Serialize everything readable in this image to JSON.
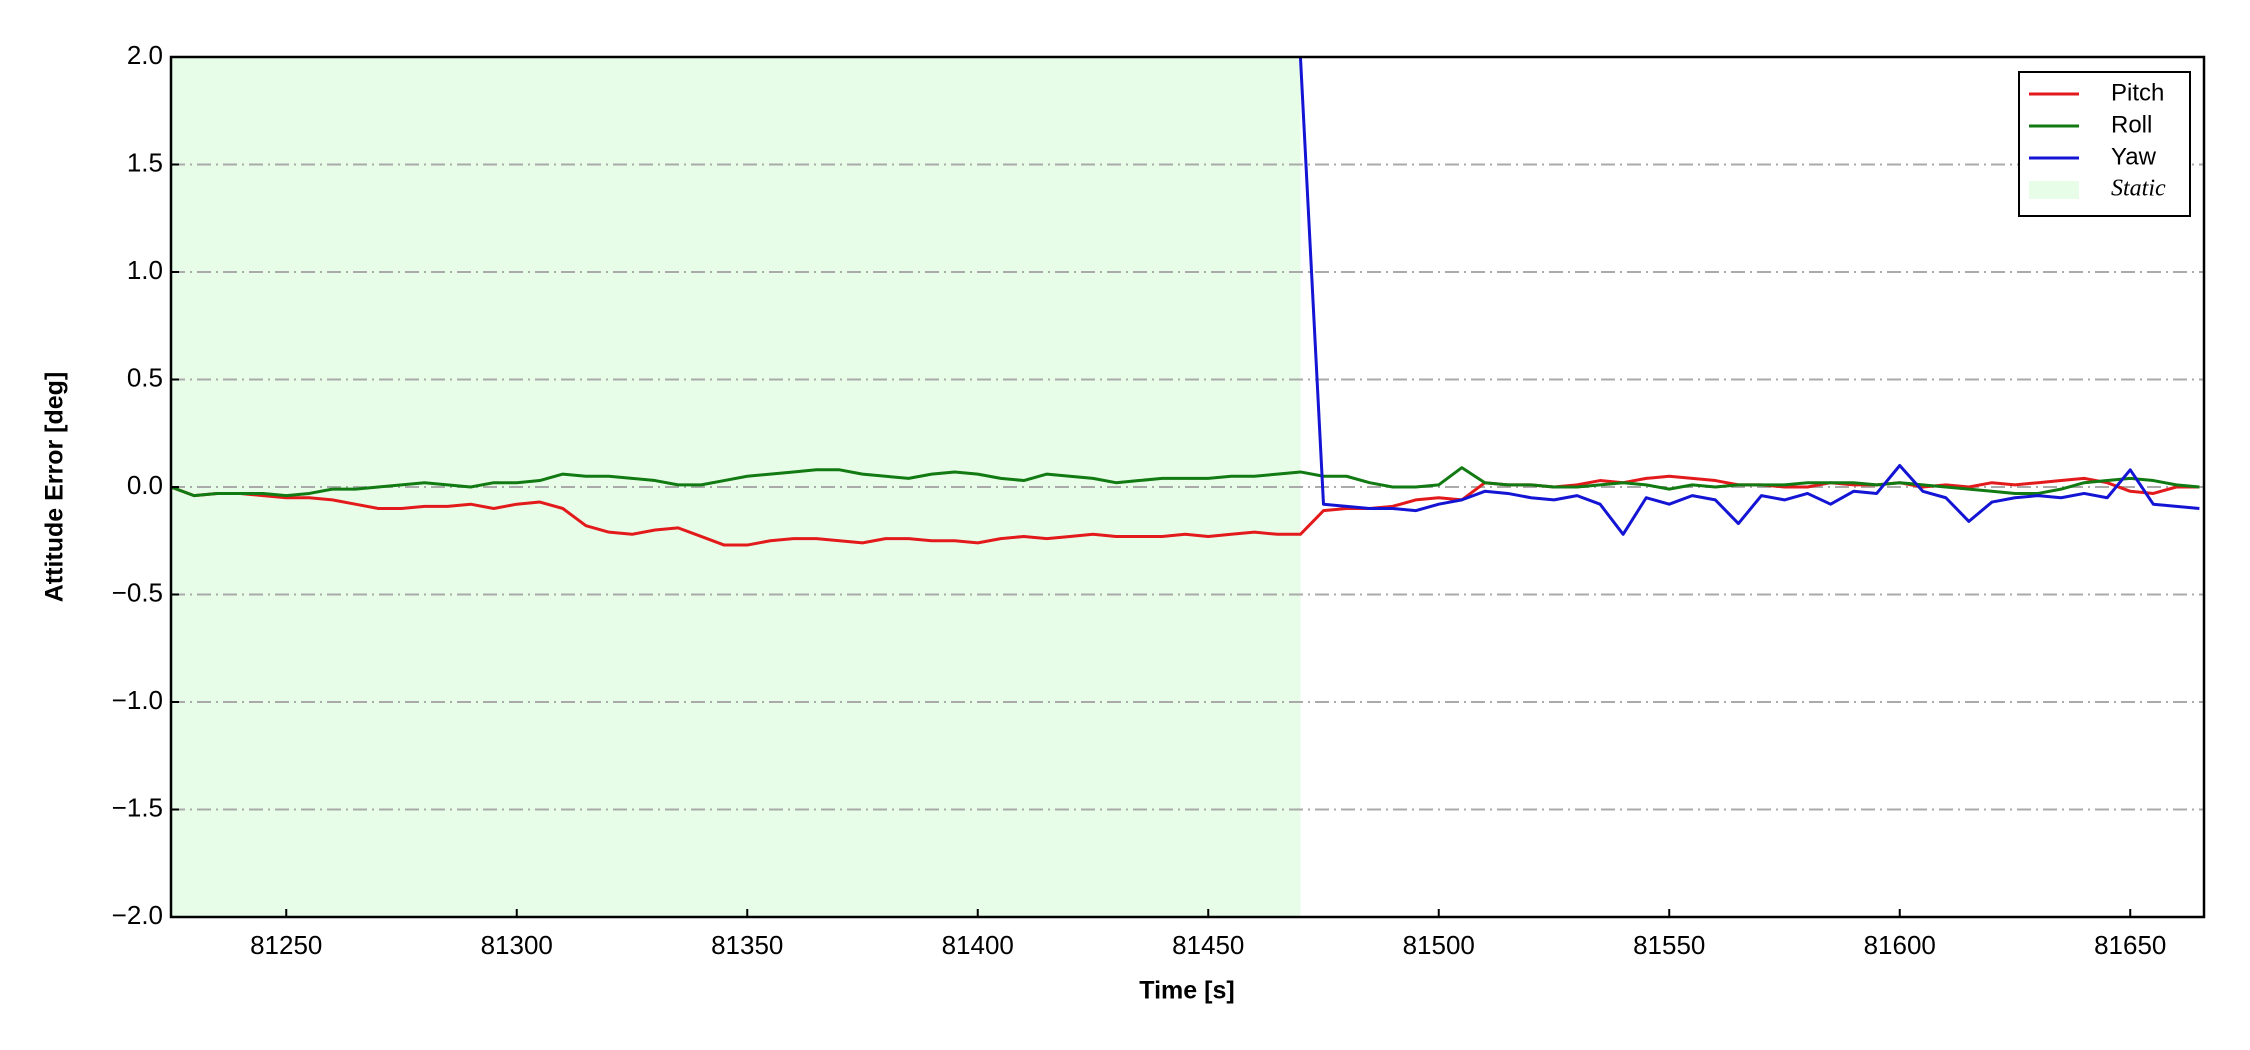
{
  "chart_data": {
    "type": "line",
    "xlabel": "Time [s]",
    "ylabel": "Attitude Error [deg]",
    "x": [
      81225,
      81230,
      81235,
      81240,
      81245,
      81250,
      81255,
      81260,
      81265,
      81270,
      81275,
      81280,
      81285,
      81290,
      81295,
      81300,
      81305,
      81310,
      81315,
      81320,
      81325,
      81330,
      81335,
      81340,
      81345,
      81350,
      81355,
      81360,
      81365,
      81370,
      81375,
      81380,
      81385,
      81390,
      81395,
      81400,
      81405,
      81410,
      81415,
      81420,
      81425,
      81430,
      81435,
      81440,
      81445,
      81450,
      81455,
      81460,
      81465,
      81470,
      81475,
      81480,
      81485,
      81490,
      81495,
      81500,
      81505,
      81510,
      81515,
      81520,
      81525,
      81530,
      81535,
      81540,
      81545,
      81550,
      81555,
      81560,
      81565,
      81570,
      81575,
      81580,
      81585,
      81590,
      81595,
      81600,
      81605,
      81610,
      81615,
      81620,
      81625,
      81630,
      81635,
      81640,
      81645,
      81650,
      81655,
      81660,
      81665
    ],
    "series": [
      {
        "name": "Pitch",
        "color": "#e31a1c",
        "values": [
          0,
          -0.04,
          -0.03,
          -0.03,
          -0.04,
          -0.05,
          -0.05,
          -0.06,
          -0.08,
          -0.1,
          -0.1,
          -0.09,
          -0.09,
          -0.08,
          -0.1,
          -0.08,
          -0.07,
          -0.1,
          -0.18,
          -0.21,
          -0.22,
          -0.2,
          -0.19,
          -0.23,
          -0.27,
          -0.27,
          -0.25,
          -0.24,
          -0.24,
          -0.25,
          -0.26,
          -0.24,
          -0.24,
          -0.25,
          -0.25,
          -0.26,
          -0.24,
          -0.23,
          -0.24,
          -0.23,
          -0.22,
          -0.23,
          -0.23,
          -0.23,
          -0.22,
          -0.23,
          -0.22,
          -0.21,
          -0.22,
          -0.22,
          -0.11,
          -0.1,
          -0.1,
          -0.09,
          -0.06,
          -0.05,
          -0.06,
          0.02,
          0.01,
          0.01,
          0,
          0.01,
          0.03,
          0.02,
          0.04,
          0.05,
          0.04,
          0.03,
          0.01,
          0.01,
          0,
          0,
          0.02,
          0.01,
          0.01,
          0.02,
          0,
          0.01,
          0,
          0.02,
          0.01,
          0.02,
          0.03,
          0.04,
          0.02,
          -0.02,
          -0.03,
          0,
          0
        ]
      },
      {
        "name": "Roll",
        "color": "#127a12",
        "values": [
          0,
          -0.04,
          -0.03,
          -0.03,
          -0.03,
          -0.04,
          -0.03,
          -0.01,
          -0.01,
          0,
          0.01,
          0.02,
          0.01,
          0,
          0.02,
          0.02,
          0.03,
          0.06,
          0.05,
          0.05,
          0.04,
          0.03,
          0.01,
          0.01,
          0.03,
          0.05,
          0.06,
          0.07,
          0.08,
          0.08,
          0.06,
          0.05,
          0.04,
          0.06,
          0.07,
          0.06,
          0.04,
          0.03,
          0.06,
          0.05,
          0.04,
          0.02,
          0.03,
          0.04,
          0.04,
          0.04,
          0.05,
          0.05,
          0.06,
          0.07,
          0.05,
          0.05,
          0.02,
          0,
          0,
          0.01,
          0.09,
          0.02,
          0.01,
          0.01,
          0,
          0,
          0.01,
          0.02,
          0.01,
          -0.01,
          0.01,
          0,
          0.01,
          0.01,
          0.01,
          0.02,
          0.02,
          0.02,
          0.01,
          0.02,
          0.01,
          0,
          -0.01,
          -0.02,
          -0.03,
          -0.03,
          -0.01,
          0.02,
          0.03,
          0.04,
          0.03,
          0.01,
          0
        ]
      },
      {
        "name": "Yaw",
        "color": "#1414d4",
        "values": [
          null,
          null,
          null,
          null,
          null,
          null,
          null,
          null,
          null,
          null,
          null,
          null,
          null,
          null,
          null,
          null,
          null,
          null,
          null,
          null,
          null,
          null,
          null,
          null,
          null,
          null,
          null,
          null,
          null,
          null,
          null,
          null,
          null,
          null,
          null,
          null,
          null,
          null,
          null,
          null,
          null,
          null,
          null,
          null,
          null,
          null,
          null,
          null,
          null,
          2.0,
          -0.08,
          -0.09,
          -0.1,
          -0.1,
          -0.11,
          -0.08,
          -0.06,
          -0.02,
          -0.03,
          -0.05,
          -0.06,
          -0.04,
          -0.08,
          -0.22,
          -0.05,
          -0.08,
          -0.04,
          -0.06,
          -0.17,
          -0.04,
          -0.06,
          -0.03,
          -0.08,
          -0.02,
          -0.03,
          0.1,
          -0.02,
          -0.05,
          -0.16,
          -0.07,
          -0.05,
          -0.04,
          -0.05,
          -0.03,
          -0.05,
          0.08,
          -0.08,
          -0.09,
          -0.1
        ]
      }
    ],
    "shaded_span": {
      "name": "Static",
      "color": "#e8fde8",
      "x": [
        81225,
        81470
      ]
    },
    "xlim": [
      81225,
      81666
    ],
    "ylim": [
      -2.0,
      2.0
    ],
    "xticks": [
      81250,
      81300,
      81350,
      81400,
      81450,
      81500,
      81550,
      81600,
      81650
    ],
    "yticks": [
      {
        "value": -2.0,
        "label": "−2.0"
      },
      {
        "value": -1.5,
        "label": "−1.5"
      },
      {
        "value": -1.0,
        "label": "−1.0"
      },
      {
        "value": -0.5,
        "label": "−0.5"
      },
      {
        "value": 0.0,
        "label": "0.0"
      },
      {
        "value": 0.5,
        "label": "0.5"
      },
      {
        "value": 1.0,
        "label": "1.0"
      },
      {
        "value": 1.5,
        "label": "1.5"
      },
      {
        "value": 2.0,
        "label": "2.0"
      }
    ],
    "grid": true,
    "legend": "upper right"
  }
}
